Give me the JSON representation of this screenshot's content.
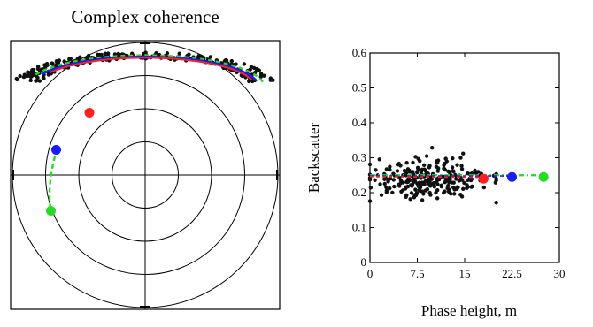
{
  "chart_data": [
    {
      "type": "scatter",
      "projection": "polar",
      "title": "Complex coherence",
      "ring_radii": [
        0.25,
        0.5,
        0.75,
        1.0
      ],
      "grid": true,
      "colors": {
        "points": "#111111",
        "line_red": "#ff1f1f",
        "line_blue": "#1a1aff",
        "line_green": "#22dd22"
      },
      "arc_model": {
        "center": [
          0.0,
          0.66
        ],
        "radius": 0.9,
        "noise_half_width": 0.1,
        "n_points": 260,
        "angle_range_deg": [
          12,
          168
        ]
      },
      "series": [],
      "markers": [
        {
          "color": "#ff1f1f",
          "x": -0.42,
          "y": 0.47
        },
        {
          "color": "#1a1aff",
          "x": -0.67,
          "y": 0.19
        },
        {
          "color": "#22dd22",
          "x": -0.71,
          "y": -0.27
        }
      ]
    },
    {
      "type": "scatter",
      "xlabel": "Phase height, m",
      "ylabel": "Backscatter",
      "xlim": [
        0,
        30
      ],
      "ylim": [
        0,
        0.6
      ],
      "xticks": [
        "0",
        "7.5",
        "15",
        "22.5",
        "30"
      ],
      "yticks": [
        "0",
        "0.1",
        "0.2",
        "0.3",
        "0.4",
        "0.5",
        "0.6"
      ],
      "grid": false,
      "cloud_model": {
        "n_points": 260,
        "x_mean": 9.5,
        "x_sd": 5,
        "x_range": [
          0,
          20
        ],
        "y_mean": 0.24,
        "y_sd": 0.028,
        "y_range": [
          0.15,
          0.38
        ]
      },
      "series": [],
      "trend_line": {
        "color": "#22dd22",
        "x": [
          0,
          27.5
        ],
        "y": [
          0.25,
          0.25
        ]
      },
      "markers": [
        {
          "color": "#ff1f1f",
          "x": 18,
          "y": 0.24
        },
        {
          "color": "#1a1aff",
          "x": 22.5,
          "y": 0.245
        },
        {
          "color": "#22dd22",
          "x": 27.5,
          "y": 0.245
        }
      ]
    }
  ]
}
